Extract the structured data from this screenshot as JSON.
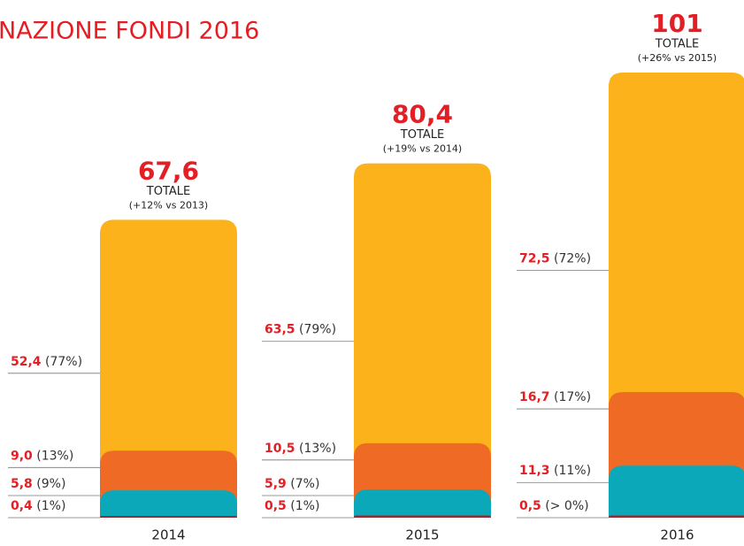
{
  "chart_data": {
    "type": "stacked_bar",
    "title": "NAZIONE FONDI 2016",
    "categories": [
      "2014",
      "2015",
      "2016"
    ],
    "series": [
      {
        "color": "#a3262a",
        "values": [
          0.4,
          0.5,
          0.5
        ],
        "value_labels": [
          "0,4",
          "0,5",
          "0,5"
        ],
        "share_labels": [
          "(1%)",
          "(1%)",
          "(> 0%)"
        ]
      },
      {
        "color": "#0ba8b9",
        "values": [
          5.8,
          5.9,
          11.3
        ],
        "value_labels": [
          "5,8",
          "5,9",
          "11,3"
        ],
        "share_labels": [
          "(9%)",
          "(7%)",
          "(11%)"
        ]
      },
      {
        "color": "#ef6a25",
        "values": [
          9.0,
          10.5,
          16.7
        ],
        "value_labels": [
          "9,0",
          "10,5",
          "16,7"
        ],
        "share_labels": [
          "(13%)",
          "(13%)",
          "(17%)"
        ]
      },
      {
        "color": "#fbb21b",
        "values": [
          52.4,
          63.5,
          72.5
        ],
        "value_labels": [
          "52,4",
          "63,5",
          "72,5"
        ],
        "share_labels": [
          "(77%)",
          "(79%)",
          "(72%)"
        ]
      }
    ],
    "totals": [
      67.6,
      80.4,
      101
    ],
    "total_labels": [
      "67,6",
      "80,4",
      "101"
    ],
    "total_caption": "TOTALE",
    "total_notes": [
      "(+12% vs 2013)",
      "(+19% vs 2014)",
      "(+26% vs 2015)"
    ]
  }
}
